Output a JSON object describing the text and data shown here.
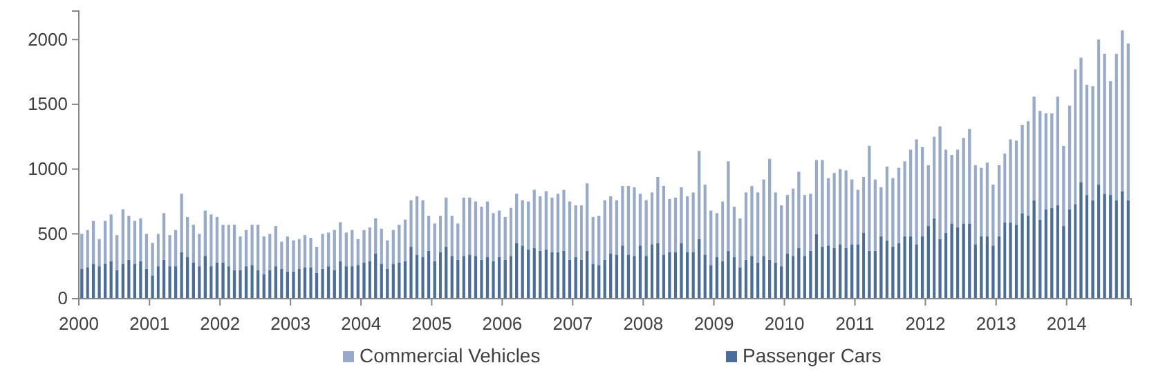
{
  "chart_data": {
    "type": "bar",
    "stacked": true,
    "x": [
      "2000-01",
      "2000-02",
      "2000-03",
      "2000-04",
      "2000-05",
      "2000-06",
      "2000-07",
      "2000-08",
      "2000-09",
      "2000-10",
      "2000-11",
      "2000-12",
      "2001-01",
      "2001-02",
      "2001-03",
      "2001-04",
      "2001-05",
      "2001-06",
      "2001-07",
      "2001-08",
      "2001-09",
      "2001-10",
      "2001-11",
      "2001-12",
      "2002-01",
      "2002-02",
      "2002-03",
      "2002-04",
      "2002-05",
      "2002-06",
      "2002-07",
      "2002-08",
      "2002-09",
      "2002-10",
      "2002-11",
      "2002-12",
      "2003-01",
      "2003-02",
      "2003-03",
      "2003-04",
      "2003-05",
      "2003-06",
      "2003-07",
      "2003-08",
      "2003-09",
      "2003-10",
      "2003-11",
      "2003-12",
      "2004-01",
      "2004-02",
      "2004-03",
      "2004-04",
      "2004-05",
      "2004-06",
      "2004-07",
      "2004-08",
      "2004-09",
      "2004-10",
      "2004-11",
      "2004-12",
      "2005-01",
      "2005-02",
      "2005-03",
      "2005-04",
      "2005-05",
      "2005-06",
      "2005-07",
      "2005-08",
      "2005-09",
      "2005-10",
      "2005-11",
      "2005-12",
      "2006-01",
      "2006-02",
      "2006-03",
      "2006-04",
      "2006-05",
      "2006-06",
      "2006-07",
      "2006-08",
      "2006-09",
      "2006-10",
      "2006-11",
      "2006-12",
      "2007-01",
      "2007-02",
      "2007-03",
      "2007-04",
      "2007-05",
      "2007-06",
      "2007-07",
      "2007-08",
      "2007-09",
      "2007-10",
      "2007-11",
      "2007-12",
      "2008-01",
      "2008-02",
      "2008-03",
      "2008-04",
      "2008-05",
      "2008-06",
      "2008-07",
      "2008-08",
      "2008-09",
      "2008-10",
      "2008-11",
      "2008-12",
      "2009-01",
      "2009-02",
      "2009-03",
      "2009-04",
      "2009-05",
      "2009-06",
      "2009-07",
      "2009-08",
      "2009-09",
      "2009-10",
      "2009-11",
      "2009-12",
      "2010-01",
      "2010-02",
      "2010-03",
      "2010-04",
      "2010-05",
      "2010-06",
      "2010-07",
      "2010-08",
      "2010-09",
      "2010-10",
      "2010-11",
      "2010-12",
      "2011-01",
      "2011-02",
      "2011-03",
      "2011-04",
      "2011-05",
      "2011-06",
      "2011-07",
      "2011-08",
      "2011-09",
      "2011-10",
      "2011-11",
      "2011-12",
      "2012-01",
      "2012-02",
      "2012-03",
      "2012-04",
      "2012-05",
      "2012-06",
      "2012-07",
      "2012-08",
      "2012-09",
      "2012-10",
      "2012-11",
      "2012-12",
      "2013-01",
      "2013-02",
      "2013-03",
      "2013-04",
      "2013-05",
      "2013-06",
      "2013-07",
      "2013-08",
      "2013-09",
      "2013-10",
      "2013-11",
      "2013-12",
      "2014-01",
      "2014-02",
      "2014-03",
      "2014-04",
      "2014-05",
      "2014-06",
      "2014-07",
      "2014-08",
      "2014-09",
      "2014-10",
      "2014-11"
    ],
    "series": [
      {
        "name": "Passenger Cars",
        "color": "#4a6d9b",
        "values": [
          230,
          240,
          270,
          250,
          270,
          290,
          220,
          270,
          300,
          270,
          290,
          230,
          180,
          250,
          300,
          250,
          250,
          360,
          320,
          280,
          250,
          330,
          250,
          280,
          280,
          250,
          220,
          220,
          250,
          260,
          220,
          190,
          220,
          250,
          230,
          210,
          210,
          230,
          240,
          240,
          200,
          230,
          250,
          220,
          290,
          250,
          250,
          260,
          280,
          290,
          350,
          270,
          230,
          270,
          280,
          290,
          400,
          340,
          320,
          370,
          290,
          360,
          400,
          330,
          300,
          330,
          340,
          330,
          300,
          320,
          290,
          320,
          300,
          330,
          430,
          410,
          380,
          390,
          370,
          380,
          360,
          360,
          370,
          300,
          320,
          300,
          370,
          270,
          260,
          300,
          350,
          340,
          410,
          340,
          330,
          410,
          330,
          420,
          430,
          340,
          360,
          360,
          430,
          360,
          360,
          460,
          340,
          260,
          320,
          290,
          370,
          320,
          240,
          300,
          330,
          280,
          330,
          300,
          280,
          250,
          350,
          330,
          390,
          330,
          370,
          500,
          400,
          410,
          390,
          420,
          390,
          420,
          420,
          510,
          370,
          370,
          480,
          450,
          400,
          430,
          480,
          480,
          420,
          480,
          560,
          620,
          460,
          510,
          580,
          550,
          580,
          580,
          420,
          480,
          480,
          410,
          480,
          590,
          590,
          570,
          660,
          640,
          760,
          610,
          690,
          700,
          720,
          560,
          690,
          730,
          900,
          800,
          760,
          880,
          810,
          800,
          760,
          830,
          760
        ]
      },
      {
        "name": "Commercial Vehicles",
        "color": "#97aacb",
        "values": [
          270,
          290,
          330,
          210,
          330,
          360,
          270,
          420,
          340,
          330,
          330,
          270,
          250,
          250,
          360,
          240,
          280,
          450,
          310,
          290,
          250,
          350,
          400,
          350,
          290,
          320,
          350,
          260,
          280,
          310,
          350,
          290,
          280,
          310,
          210,
          270,
          240,
          230,
          250,
          230,
          200,
          270,
          260,
          310,
          300,
          260,
          280,
          200,
          250,
          260,
          270,
          270,
          220,
          260,
          290,
          320,
          360,
          450,
          440,
          270,
          290,
          280,
          380,
          310,
          280,
          450,
          440,
          420,
          410,
          430,
          370,
          360,
          330,
          370,
          380,
          350,
          370,
          450,
          420,
          450,
          420,
          450,
          470,
          450,
          400,
          420,
          520,
          360,
          380,
          460,
          440,
          420,
          460,
          530,
          530,
          400,
          430,
          400,
          510,
          530,
          410,
          420,
          430,
          430,
          460,
          680,
          540,
          420,
          340,
          460,
          690,
          390,
          380,
          520,
          540,
          540,
          590,
          780,
          540,
          470,
          450,
          520,
          590,
          470,
          440,
          570,
          670,
          520,
          580,
          580,
          600,
          500,
          420,
          430,
          810,
          550,
          380,
          570,
          530,
          580,
          580,
          670,
          810,
          690,
          470,
          630,
          870,
          640,
          530,
          600,
          660,
          730,
          610,
          530,
          570,
          470,
          550,
          530,
          640,
          650,
          680,
          730,
          800,
          840,
          740,
          730,
          840,
          620,
          800,
          1040,
          960,
          850,
          880,
          1120,
          1080,
          880,
          1130,
          1240,
          1210
        ]
      }
    ],
    "xlim": [
      "2000-01",
      "2014-12"
    ],
    "xticks": [
      {
        "value": "2000-01",
        "label": "2000"
      },
      {
        "value": "2001-01",
        "label": "2001"
      },
      {
        "value": "2002-01",
        "label": "2002"
      },
      {
        "value": "2003-01",
        "label": "2003"
      },
      {
        "value": "2004-01",
        "label": "2004"
      },
      {
        "value": "2005-01",
        "label": "2005"
      },
      {
        "value": "2006-01",
        "label": "2006"
      },
      {
        "value": "2007-01",
        "label": "2007"
      },
      {
        "value": "2008-01",
        "label": "2008"
      },
      {
        "value": "2009-01",
        "label": "2009"
      },
      {
        "value": "2010-01",
        "label": "2010"
      },
      {
        "value": "2011-01",
        "label": "2011"
      },
      {
        "value": "2012-01",
        "label": "2012"
      },
      {
        "value": "2013-01",
        "label": "2013"
      },
      {
        "value": "2014-01",
        "label": "2014"
      }
    ],
    "ylim": [
      0,
      2220
    ],
    "yticks": [
      0,
      500,
      1000,
      1500,
      2000
    ],
    "grid": false,
    "legend": "bottom"
  }
}
